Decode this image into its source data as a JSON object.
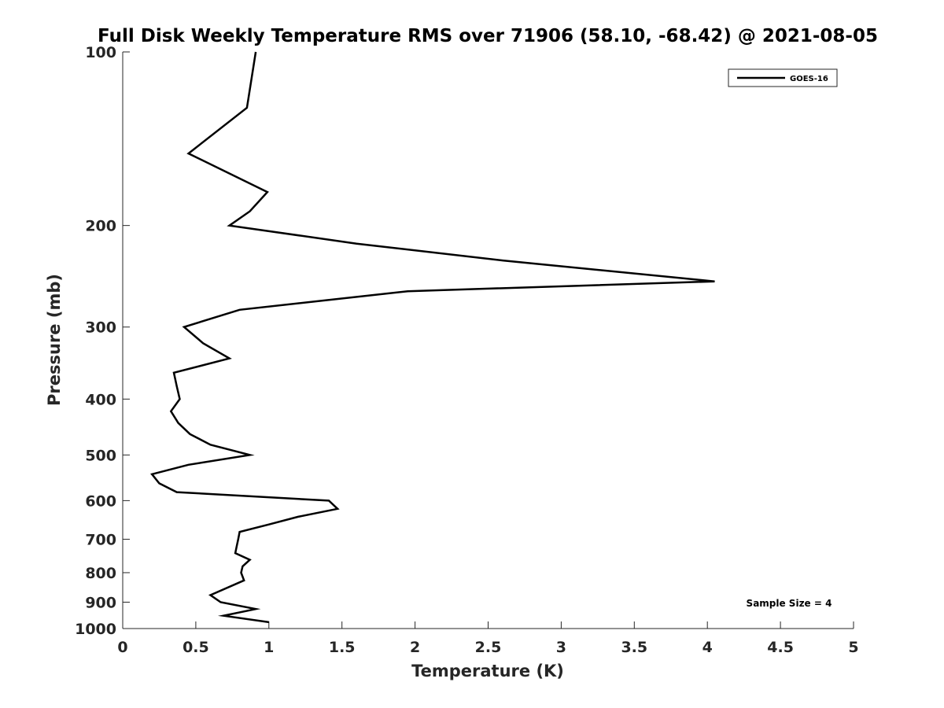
{
  "chart_data": {
    "type": "line",
    "title": "Full Disk Weekly Temperature RMS over 71906 (58.10, -68.42) @ 2021-08-05",
    "xlabel": "Temperature (K)",
    "ylabel": "Pressure (mb)",
    "xlim": [
      0,
      5
    ],
    "ylim": [
      100,
      1000
    ],
    "y_scale": "log",
    "y_reversed": true,
    "grid": false,
    "x_ticks": [
      0,
      0.5,
      1,
      1.5,
      2,
      2.5,
      3,
      3.5,
      4,
      4.5,
      5
    ],
    "x_tick_labels": [
      "0",
      "0.5",
      "1",
      "1.5",
      "2",
      "2.5",
      "3",
      "3.5",
      "4",
      "4.5",
      "5"
    ],
    "y_ticks": [
      100,
      200,
      300,
      400,
      500,
      600,
      700,
      800,
      900,
      1000
    ],
    "y_tick_labels": [
      "100",
      "200",
      "300",
      "400",
      "500",
      "600",
      "700",
      "800",
      "900",
      "1000"
    ],
    "legend": {
      "position": "top-right",
      "entries": [
        "GOES-16"
      ]
    },
    "annotation": "Sample Size = 4",
    "series": [
      {
        "name": "GOES-16",
        "color": "#000000",
        "points": [
          [
            0.91,
            100
          ],
          [
            0.85,
            125
          ],
          [
            0.45,
            150
          ],
          [
            0.99,
            175
          ],
          [
            0.87,
            189
          ],
          [
            0.73,
            200
          ],
          [
            1.6,
            215
          ],
          [
            2.6,
            230
          ],
          [
            4.05,
            250
          ],
          [
            1.95,
            260
          ],
          [
            0.8,
            280
          ],
          [
            0.42,
            300
          ],
          [
            0.55,
            320
          ],
          [
            0.73,
            340
          ],
          [
            0.35,
            360
          ],
          [
            0.37,
            380
          ],
          [
            0.39,
            400
          ],
          [
            0.33,
            420
          ],
          [
            0.38,
            440
          ],
          [
            0.46,
            460
          ],
          [
            0.6,
            480
          ],
          [
            0.87,
            500
          ],
          [
            0.45,
            520
          ],
          [
            0.2,
            540
          ],
          [
            0.25,
            560
          ],
          [
            0.37,
            580
          ],
          [
            1.41,
            600
          ],
          [
            1.47,
            620
          ],
          [
            1.2,
            640
          ],
          [
            1.0,
            660
          ],
          [
            0.8,
            680
          ],
          [
            0.79,
            700
          ],
          [
            0.78,
            720
          ],
          [
            0.77,
            740
          ],
          [
            0.87,
            760
          ],
          [
            0.82,
            780
          ],
          [
            0.81,
            800
          ],
          [
            0.83,
            825
          ],
          [
            0.6,
            875
          ],
          [
            0.67,
            900
          ],
          [
            0.91,
            925
          ],
          [
            0.69,
            950
          ],
          [
            1.0,
            975
          ]
        ]
      }
    ]
  }
}
